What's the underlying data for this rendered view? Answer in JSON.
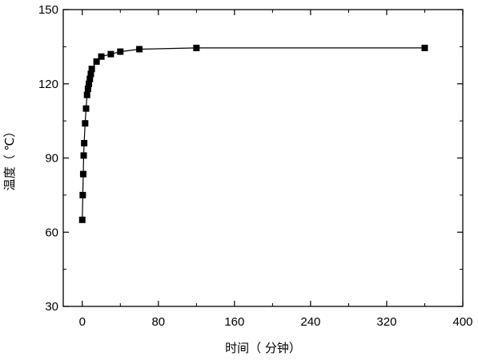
{
  "chart_data": {
    "type": "scatter",
    "title": "",
    "xlabel": "时间（ 分钟）",
    "ylabel": "温度（ ℃）",
    "xlim": [
      -20,
      400
    ],
    "ylim": [
      30,
      150
    ],
    "xticks": [
      0,
      80,
      160,
      240,
      320,
      400
    ],
    "yticks": [
      30,
      60,
      90,
      120,
      150
    ],
    "grid": false,
    "legend": "none",
    "line_color": "#000000",
    "marker": "square",
    "series": [
      {
        "x": [
          0,
          0.5,
          1,
          1.5,
          2,
          3,
          4,
          5,
          6,
          7,
          8,
          9,
          10,
          15,
          20,
          30,
          40,
          60,
          120,
          360
        ],
        "y": [
          65,
          75,
          83.5,
          91,
          96,
          104,
          110,
          115.5,
          118,
          120,
          122,
          124,
          126,
          129,
          131,
          132,
          133,
          134,
          134.5,
          134.5
        ]
      }
    ]
  }
}
